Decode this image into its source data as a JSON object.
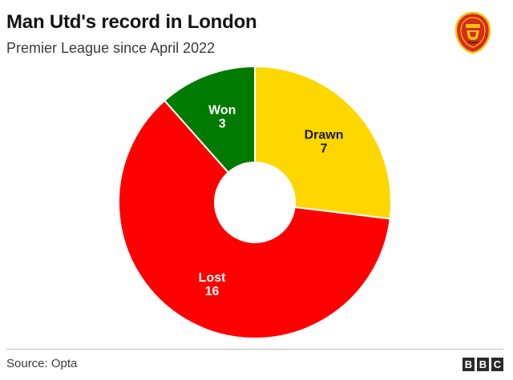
{
  "header": {
    "title": "Man Utd's record in London",
    "subtitle": "Premier League since April 2022"
  },
  "logo": {
    "icon": "manchester-united-crest-icon",
    "colors": {
      "red": "#d52b1e",
      "gold": "#f4c20d",
      "black": "#1a1a1a"
    }
  },
  "footer": {
    "source": "Source: Opta",
    "brand": [
      "B",
      "B",
      "C"
    ]
  },
  "chart_data": {
    "type": "pie",
    "style": "donut",
    "categories": [
      "Drawn",
      "Lost",
      "Won"
    ],
    "values": [
      7,
      16,
      3
    ],
    "colors": [
      "#ffd700",
      "#ff0000",
      "#007a00"
    ],
    "label_colors": [
      "#1a1a1a",
      "#ffffff",
      "#ffffff"
    ],
    "start": "12 o'clock, clockwise",
    "legend": "none (labels on slices)"
  }
}
